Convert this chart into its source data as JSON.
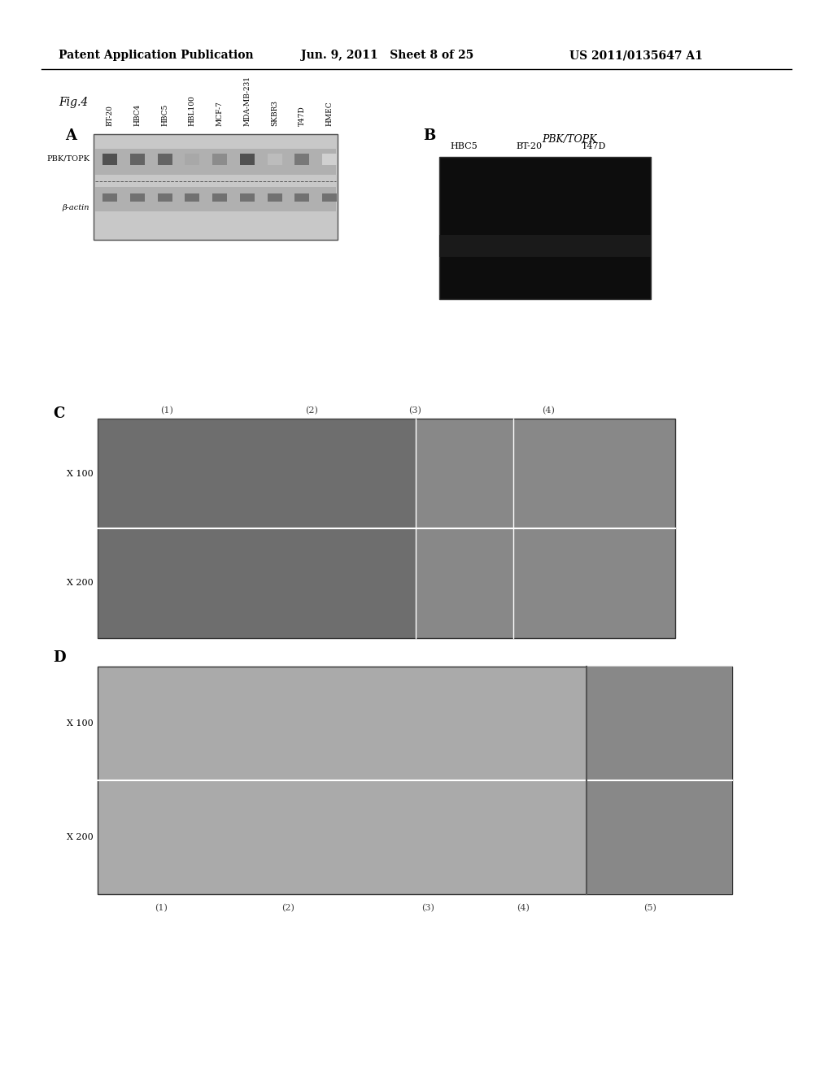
{
  "page_header_left": "Patent Application Publication",
  "page_header_mid": "Jun. 9, 2011   Sheet 8 of 25",
  "page_header_right": "US 2011/0135647 A1",
  "fig_label": "Fig.4",
  "panel_A_label": "A",
  "panel_B_label": "B",
  "panel_C_label": "C",
  "panel_D_label": "D",
  "panel_A_row_labels": [
    "PBK/TOPK",
    "β-actin"
  ],
  "panel_A_col_labels": [
    "BT-20",
    "HBC4",
    "HBC5",
    "HBL100",
    "MCF-7",
    "MDA-MB-231",
    "SKBR3",
    "T47D",
    "HMEC"
  ],
  "panel_B_title": "PBK/TOPK",
  "panel_B_col_labels": [
    "HBC5",
    "BT-20",
    "T47D"
  ],
  "panel_C_col_labels": [
    "(1)",
    "(2)",
    "(3)",
    "(4)"
  ],
  "panel_C_row_labels": [
    "X 100",
    "X 200"
  ],
  "panel_D_col_labels": [
    "(1)",
    "(2)",
    "(3)",
    "(4)",
    "(5)"
  ],
  "panel_D_row_labels": [
    "X 100",
    "X 200"
  ],
  "bg_color": "#ffffff",
  "panel_bg": "#d0d0d0",
  "panel_B_bg": "#0a0a0a",
  "header_fontsize": 10,
  "label_fontsize": 13,
  "sublabel_fontsize": 11
}
